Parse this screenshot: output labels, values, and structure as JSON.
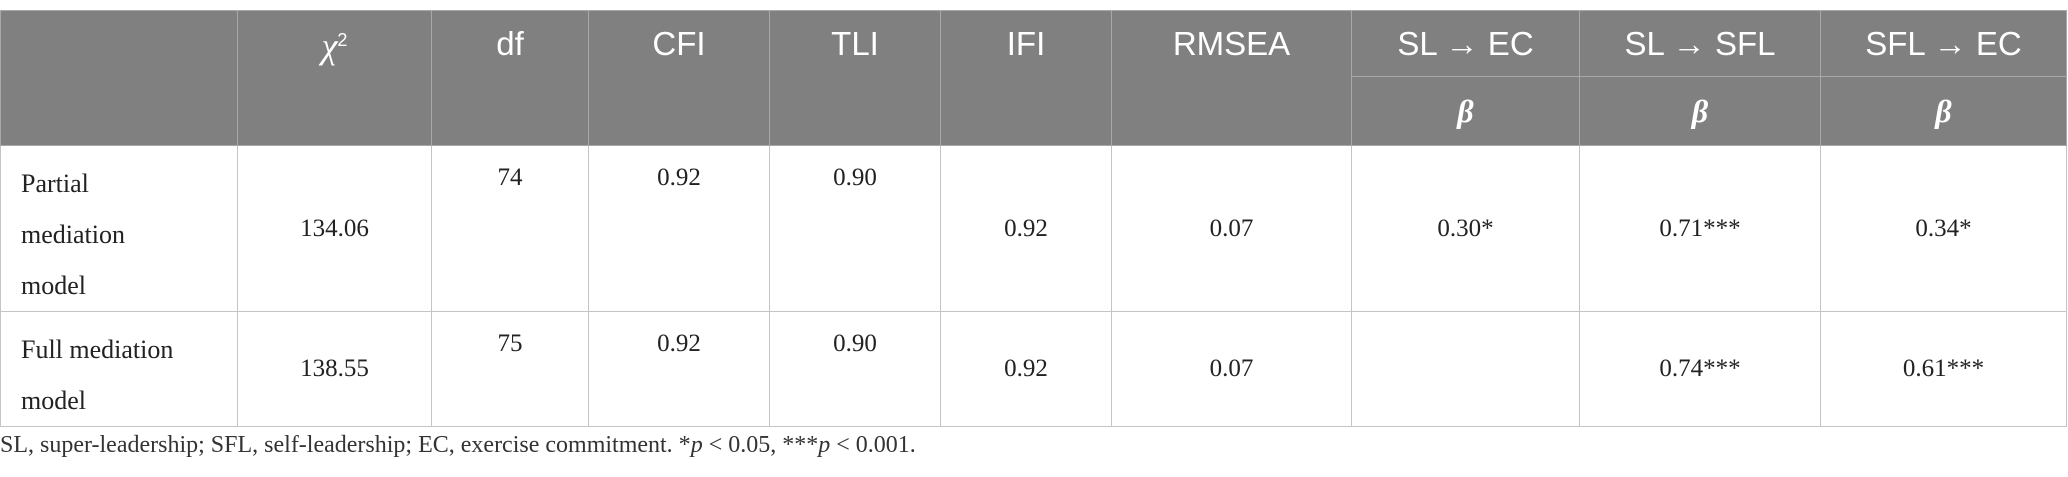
{
  "table": {
    "columns": [
      null,
      {
        "text": "χ",
        "sup": "2"
      },
      "df",
      "CFI",
      "TLI",
      "IFI",
      "RMSEA",
      "SL → EC",
      "SL → SFL",
      "SFL → EC"
    ],
    "subheader": [
      "β",
      "β",
      "β"
    ],
    "rows": [
      [
        "Partial mediation model",
        "134.06",
        "74",
        "0.92",
        "0.90",
        "0.92",
        "0.07",
        "0.30*",
        "0.71***",
        "0.34*"
      ],
      [
        "Full mediation model",
        "138.55",
        "75",
        "0.92",
        "0.90",
        "0.92",
        "0.07",
        null,
        "0.74***",
        "0.61***"
      ]
    ]
  },
  "footnote": [
    "SL, super-leadership; SFL, self-leadership; EC, exercise commitment. *",
    "p",
    " < 0.05, ***",
    "p",
    " < 0.001."
  ]
}
